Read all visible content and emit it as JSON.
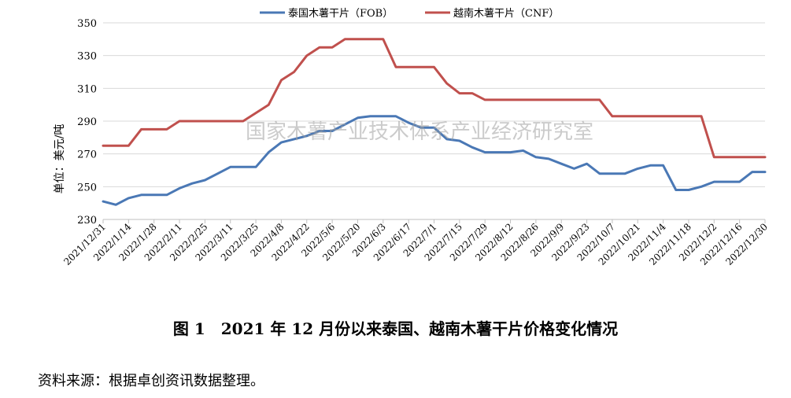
{
  "chart_data": {
    "type": "line",
    "title": "",
    "ylabel": "单位：美元/吨",
    "xlabel": "",
    "ylim": [
      230,
      350
    ],
    "yticks": [
      230,
      250,
      270,
      290,
      310,
      330,
      350
    ],
    "grid": "horizontal",
    "legend_position": "top-center",
    "x": [
      "2021/12/31",
      "2022/1/7",
      "2022/1/14",
      "2022/1/21",
      "2022/1/28",
      "2022/2/4",
      "2022/2/11",
      "2022/2/18",
      "2022/2/25",
      "2022/3/4",
      "2022/3/11",
      "2022/3/18",
      "2022/3/25",
      "2022/4/1",
      "2022/4/8",
      "2022/4/15",
      "2022/4/22",
      "2022/4/29",
      "2022/5/6",
      "2022/5/13",
      "2022/5/20",
      "2022/5/27",
      "2022/6/3",
      "2022/6/10",
      "2022/6/17",
      "2022/6/24",
      "2022/7/1",
      "2022/7/8",
      "2022/7/15",
      "2022/7/22",
      "2022/7/29",
      "2022/8/5",
      "2022/8/12",
      "2022/8/19",
      "2022/8/26",
      "2022/9/2",
      "2022/9/9",
      "2022/9/16",
      "2022/9/23",
      "2022/9/30",
      "2022/10/7",
      "2022/10/14",
      "2022/10/21",
      "2022/10/28",
      "2022/11/4",
      "2022/11/11",
      "2022/11/18",
      "2022/11/25",
      "2022/12/2",
      "2022/12/9",
      "2022/12/16",
      "2022/12/23",
      "2022/12/30"
    ],
    "x_tick_labels": [
      "2021/12/31",
      "2022/1/14",
      "2022/1/28",
      "2022/2/11",
      "2022/2/25",
      "2022/3/11",
      "2022/3/25",
      "2022/4/8",
      "2022/4/22",
      "2022/5/6",
      "2022/5/20",
      "2022/6/3",
      "2022/6/17",
      "2022/7/1",
      "2022/7/15",
      "2022/7/29",
      "2022/8/12",
      "2022/8/26",
      "2022/9/9",
      "2022/9/23",
      "2022/10/7",
      "2022/10/21",
      "2022/11/4",
      "2022/11/18",
      "2022/12/2",
      "2022/12/16",
      "2022/12/30"
    ],
    "series": [
      {
        "name": "泰国木薯干片（FOB）",
        "color": "#4a78b5",
        "values": [
          241,
          239,
          243,
          245,
          245,
          245,
          249,
          252,
          254,
          258,
          262,
          262,
          262,
          271,
          277,
          279,
          281,
          284,
          284,
          288,
          292,
          293,
          293,
          293,
          289,
          286,
          286,
          279,
          278,
          274,
          271,
          271,
          271,
          272,
          268,
          267,
          264,
          261,
          264,
          258,
          258,
          258,
          261,
          263,
          263,
          248,
          248,
          250,
          253,
          253,
          253,
          259,
          259
        ]
      },
      {
        "name": "越南木薯干片（CNF）",
        "color": "#c0504d",
        "values": [
          275,
          275,
          275,
          285,
          285,
          285,
          290,
          290,
          290,
          290,
          290,
          290,
          295,
          300,
          315,
          320,
          330,
          335,
          335,
          340,
          340,
          340,
          340,
          323,
          323,
          323,
          323,
          313,
          307,
          307,
          303,
          303,
          303,
          303,
          303,
          303,
          303,
          303,
          303,
          303,
          293,
          293,
          293,
          293,
          293,
          293,
          293,
          293,
          268,
          268,
          268,
          268,
          268
        ]
      }
    ]
  },
  "watermark": "国家木薯产业技术体系产业经济研究室",
  "caption": "图 1　2021 年 12 月份以来泰国、越南木薯干片价格变化情况",
  "source": "资料来源：根据卓创资讯数据整理。"
}
